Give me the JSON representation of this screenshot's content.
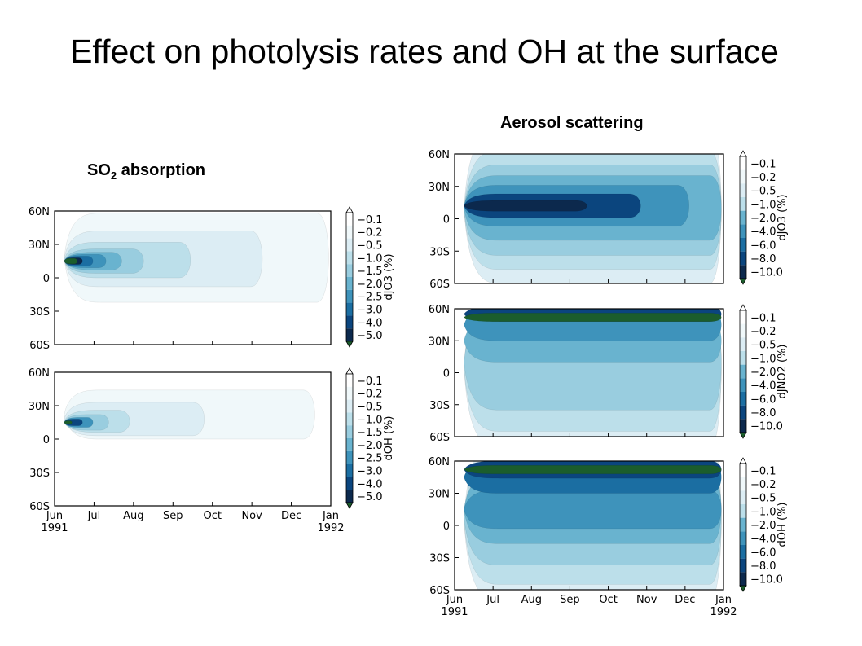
{
  "page": {
    "title": "Effect on photolysis rates and OH at the surface",
    "left_heading": {
      "main": "SO",
      "sub": "2",
      "rest": " absorption"
    },
    "right_heading": "Aerosol scattering"
  },
  "palette": [
    "#ffffff",
    "#f0f8fa",
    "#dcedf4",
    "#bcdfea",
    "#99cddf",
    "#69b3cf",
    "#3e93bb",
    "#1b6ea2",
    "#0b457e",
    "#0c294d",
    "#1b5d2c"
  ],
  "chart_data": [
    {
      "type": "heatmap",
      "group": "SO2 absorption",
      "colorbar_label": "dJO3 (%)",
      "levels": [
        "-0.1",
        "-0.2",
        "-0.5",
        "-1.0",
        "-1.5",
        "-2.0",
        "-2.5",
        "-3.0",
        "-4.0",
        "-5.0"
      ],
      "y_ticks": [
        "60N",
        "30N",
        "0",
        "30S",
        "60S"
      ],
      "x_ticks": [],
      "features": [
        {
          "level": 1,
          "lon_range": [
            "Jun",
            "Dec"
          ],
          "center_lat": 18,
          "lat_halfwidth": 40,
          "time_end_frac": 1.0
        },
        {
          "level": 2,
          "center_lat": 17,
          "lat_halfwidth": 25,
          "time_end_frac": 0.76
        },
        {
          "level": 3,
          "center_lat": 16,
          "lat_halfwidth": 16,
          "time_end_frac": 0.5
        },
        {
          "level": 4,
          "center_lat": 15,
          "lat_halfwidth": 11,
          "time_end_frac": 0.33
        },
        {
          "level": 5,
          "center_lat": 15,
          "lat_halfwidth": 8,
          "time_end_frac": 0.25
        },
        {
          "level": 6,
          "center_lat": 15,
          "lat_halfwidth": 6,
          "time_end_frac": 0.19
        },
        {
          "level": 7,
          "center_lat": 15,
          "lat_halfwidth": 4.5,
          "time_end_frac": 0.14
        },
        {
          "level": 9,
          "center_lat": 15,
          "lat_halfwidth": 3,
          "time_end_frac": 0.1
        },
        {
          "level": 10,
          "center_lat": 15,
          "lat_halfwidth": 2.5,
          "time_end_frac": 0.08
        }
      ]
    },
    {
      "type": "heatmap",
      "group": "SO2 absorption",
      "colorbar_label": "dOH (%)",
      "levels": [
        "-0.1",
        "-0.2",
        "-0.5",
        "-1.0",
        "-1.5",
        "-2.0",
        "-2.5",
        "-3.0",
        "-4.0",
        "-5.0"
      ],
      "y_ticks": [
        "60N",
        "30N",
        "0",
        "30S",
        "60S"
      ],
      "x_ticks": [
        [
          "Jun",
          "1991"
        ],
        [
          "Jul",
          ""
        ],
        [
          "Aug",
          ""
        ],
        [
          "Sep",
          ""
        ],
        [
          "Oct",
          ""
        ],
        [
          "Nov",
          ""
        ],
        [
          "Dec",
          ""
        ],
        [
          "Jan",
          "1992"
        ]
      ],
      "features": [
        {
          "level": 1,
          "center_lat": 22,
          "lat_halfwidth": 22,
          "time_end_frac": 0.95
        },
        {
          "level": 2,
          "center_lat": 18,
          "lat_halfwidth": 15,
          "time_end_frac": 0.55
        },
        {
          "level": 3,
          "center_lat": 16,
          "lat_halfwidth": 10,
          "time_end_frac": 0.28
        },
        {
          "level": 4,
          "center_lat": 15,
          "lat_halfwidth": 7,
          "time_end_frac": 0.2
        },
        {
          "level": 6,
          "center_lat": 15,
          "lat_halfwidth": 4.5,
          "time_end_frac": 0.14
        },
        {
          "level": 8,
          "center_lat": 15,
          "lat_halfwidth": 3,
          "time_end_frac": 0.1
        },
        {
          "level": 10,
          "center_lat": 15,
          "lat_halfwidth": 1.5,
          "time_end_frac": 0.06
        }
      ]
    },
    {
      "type": "heatmap",
      "group": "Aerosol scattering",
      "colorbar_label": "dJO3 (%)",
      "levels": [
        "-0.1",
        "-0.2",
        "-0.5",
        "-1.0",
        "-2.0",
        "-4.0",
        "-6.0",
        "-8.0",
        "-10.0"
      ],
      "y_ticks": [
        "60N",
        "30N",
        "0",
        "30S",
        "60S"
      ],
      "x_ticks": [],
      "features": [
        {
          "level": 2,
          "center_lat": 10,
          "lat_halfwidth": 70,
          "time_end_frac": 1.0
        },
        {
          "level": 3,
          "center_lat": 8,
          "lat_halfwidth": 55,
          "time_end_frac": 1.0
        },
        {
          "level": 4,
          "center_lat": 8,
          "lat_halfwidth": 42,
          "time_end_frac": 1.0
        },
        {
          "level": 5,
          "center_lat": 10,
          "lat_halfwidth": 30,
          "time_end_frac": 1.0
        },
        {
          "level": 6,
          "center_lat": 12,
          "lat_halfwidth": 19,
          "time_end_frac": 0.88
        },
        {
          "level": 8,
          "center_lat": 12,
          "lat_halfwidth": 11,
          "time_end_frac": 0.7
        },
        {
          "level": 9,
          "center_lat": 12,
          "lat_halfwidth": 5,
          "time_end_frac": 0.5
        }
      ]
    },
    {
      "type": "heatmap",
      "group": "Aerosol scattering",
      "colorbar_label": "dJNO2 (%)",
      "levels": [
        "-0.1",
        "-0.2",
        "-0.5",
        "-1.0",
        "-2.0",
        "-4.0",
        "-6.0",
        "-8.0",
        "-10.0"
      ],
      "y_ticks": [
        "60N",
        "30N",
        "0",
        "30S",
        "60S"
      ],
      "x_ticks": [],
      "features": [
        {
          "level": 2,
          "center_lat": 5,
          "lat_halfwidth": 75,
          "time_end_frac": 1.0
        },
        {
          "level": 3,
          "center_lat": 5,
          "lat_halfwidth": 60,
          "time_end_frac": 1.0
        },
        {
          "level": 4,
          "center_lat": 10,
          "lat_halfwidth": 45,
          "time_end_frac": 1.0
        },
        {
          "level": 5,
          "center_lat": 30,
          "lat_halfwidth": 20,
          "time_end_frac": 1.0
        },
        {
          "level": 6,
          "center_lat": 45,
          "lat_halfwidth": 15,
          "time_end_frac": 1.0
        },
        {
          "level": 8,
          "center_lat": 55,
          "lat_halfwidth": 7,
          "time_end_frac": 1.0
        },
        {
          "level": 10,
          "center_lat": 52,
          "lat_halfwidth": 4,
          "time_end_frac": 1.0
        }
      ]
    },
    {
      "type": "heatmap",
      "group": "Aerosol scattering",
      "colorbar_label": "dOH (%)",
      "levels": [
        "-0.1",
        "-0.2",
        "-0.5",
        "-1.0",
        "-2.0",
        "-4.0",
        "-6.0",
        "-8.0",
        "-10.0"
      ],
      "y_ticks": [
        "60N",
        "30N",
        "0",
        "30S",
        "60S"
      ],
      "x_ticks": [
        [
          "Jun",
          "1991"
        ],
        [
          "Jul",
          ""
        ],
        [
          "Aug",
          ""
        ],
        [
          "Sep",
          ""
        ],
        [
          "Oct",
          ""
        ],
        [
          "Nov",
          ""
        ],
        [
          "Dec",
          ""
        ],
        [
          "Jan",
          "1992"
        ]
      ],
      "features": [
        {
          "level": 2,
          "center_lat": 5,
          "lat_halfwidth": 75,
          "time_end_frac": 1.0
        },
        {
          "level": 3,
          "center_lat": 5,
          "lat_halfwidth": 60,
          "time_end_frac": 1.0
        },
        {
          "level": 4,
          "center_lat": 8,
          "lat_halfwidth": 45,
          "time_end_frac": 1.0
        },
        {
          "level": 5,
          "center_lat": 15,
          "lat_halfwidth": 32,
          "time_end_frac": 1.0
        },
        {
          "level": 6,
          "center_lat": 15,
          "lat_halfwidth": 18,
          "time_end_frac": 1.0
        },
        {
          "level": 7,
          "center_lat": 45,
          "lat_halfwidth": 15,
          "time_end_frac": 1.0
        },
        {
          "level": 8,
          "center_lat": 52,
          "lat_halfwidth": 8,
          "time_end_frac": 1.0
        },
        {
          "level": 10,
          "center_lat": 52,
          "lat_halfwidth": 4,
          "time_end_frac": 1.0
        }
      ]
    }
  ]
}
